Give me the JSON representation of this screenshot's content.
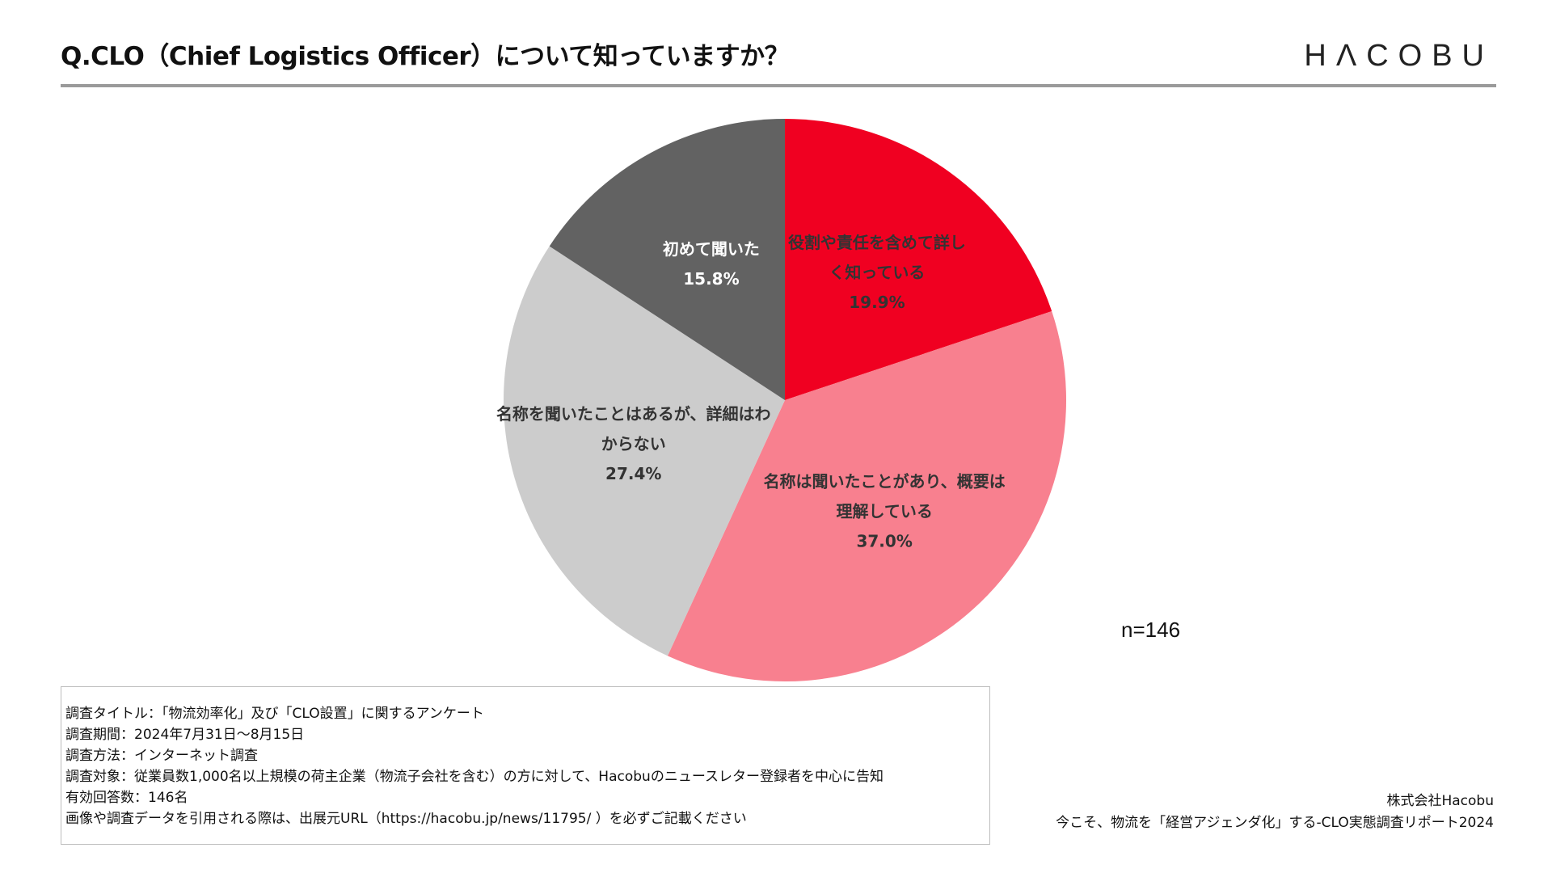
{
  "header": {
    "title": "Q.CLO（Chief Logistics Officer）について知っていますか？",
    "logo": "HΛCOBU"
  },
  "chart_data": {
    "type": "pie",
    "title": "Q.CLO（Chief Logistics Officer）について知っていますか？",
    "start_angle_deg": 0,
    "direction": "clockwise",
    "slices": [
      {
        "label": "役割や責任を含めて詳しく知っている",
        "label_lines": [
          "役割や責任を含めて詳し",
          "く知っている"
        ],
        "value": 19.9,
        "value_label": "19.9%",
        "color": "#f00021",
        "text_color": "#333333"
      },
      {
        "label": "名称は聞いたことがあり、概要は理解している",
        "label_lines": [
          "名称は聞いたことがあり、概要は",
          "理解している"
        ],
        "value": 37.0,
        "value_label": "37.0%",
        "color": "#f8808f",
        "text_color": "#333333"
      },
      {
        "label": "名称を聞いたことはあるが、詳細はわからない",
        "label_lines": [
          "名称を聞いたことはあるが、詳細はわ",
          "からない"
        ],
        "value": 27.4,
        "value_label": "27.4%",
        "color": "#cccccc",
        "text_color": "#333333"
      },
      {
        "label": "初めて聞いた",
        "label_lines": [
          "初めて聞いた"
        ],
        "value": 15.8,
        "value_label": "15.8%",
        "color": "#626262",
        "text_color": "#ffffff"
      }
    ],
    "n_label": "n=146"
  },
  "survey_notes": [
    "調査タイトル：「物流効率化」及び「CLO設置」に関するアンケート",
    "調査期間：2024年7月31日～8月15日",
    "調査方法：インターネット調査",
    "調査対象：従業員数1,000名以上規模の荷主企業（物流子会社を含む）の方に対して、Hacobuのニュースレター登録者を中心に告知",
    "有効回答数：146名",
    "画像や調査データを引用される際は、出展元URL（https://hacobu.jp/news/11795/ ）を必ずご記載ください"
  ],
  "credit": {
    "company": "株式会社Hacobu",
    "report": "今こそ、物流を「経営アジェンダ化」する-CLO実態調査リポート2024"
  }
}
